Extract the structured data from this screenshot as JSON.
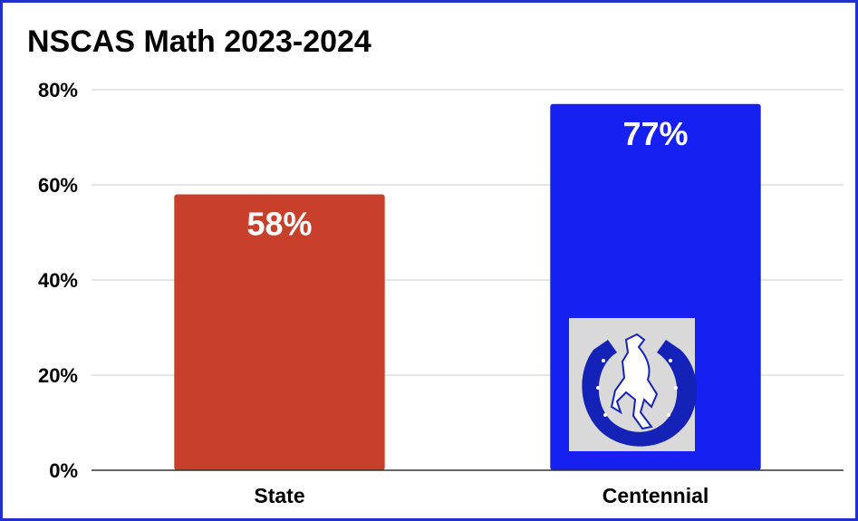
{
  "chart_data": {
    "type": "bar",
    "title": "NSCAS Math 2023-2024",
    "categories": [
      "State",
      "Centennial"
    ],
    "values": [
      58,
      77
    ],
    "data_labels": [
      "58%",
      "77%"
    ],
    "ylim": [
      0,
      80
    ],
    "yticks": [
      "0%",
      "20%",
      "40%",
      "60%",
      "80%"
    ],
    "ytick_values": [
      0,
      20,
      40,
      60,
      80
    ],
    "grid": true,
    "legend": "none",
    "colors": [
      "#c8402b",
      "#1620f0"
    ],
    "logo_icon": "horseshoe-bronco-logo"
  },
  "theme": {
    "border_color": "#1f2fd0",
    "grid_color": "#cccccc",
    "axis_color": "#333333"
  }
}
